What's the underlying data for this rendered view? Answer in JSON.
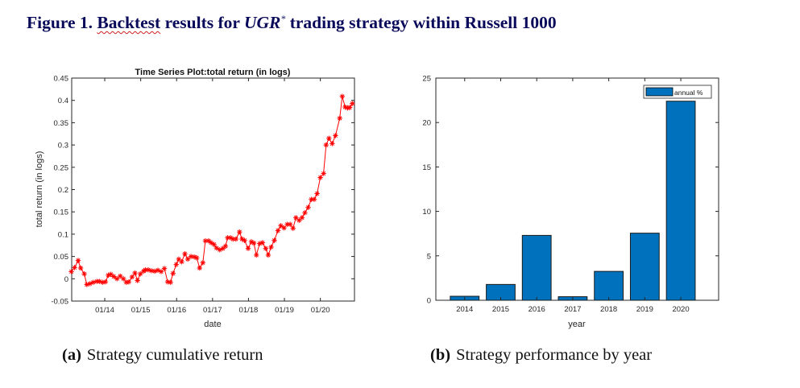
{
  "figure": {
    "prefix": "Figure 1.",
    "word_backtest": "Backtest",
    "text_mid": "results for",
    "ugr": "UGR",
    "ugr_sup": "*",
    "text_end": "trading strategy within Russell 1000"
  },
  "captions": {
    "a_label": "(a)",
    "a_text": "Strategy cumulative return",
    "b_label": "(b)",
    "b_text": "Strategy performance by year"
  },
  "chart_data": [
    {
      "type": "line",
      "title": "Time Series Plot:total return (in logs)",
      "xlabel": "date",
      "ylabel": "total return (in logs)",
      "xlim": [
        2013.08,
        2020.95
      ],
      "ylim": [
        -0.05,
        0.45
      ],
      "yticks": [
        -0.05,
        0,
        0.05,
        0.1,
        0.15,
        0.2,
        0.25,
        0.3,
        0.35,
        0.4,
        0.45
      ],
      "ytick_labels": [
        "-0.05",
        "0",
        "0.05",
        "0.1",
        "0.15",
        "0.2",
        "0.25",
        "0.3",
        "0.35",
        "0.4",
        "0.45"
      ],
      "xticks": [
        2014,
        2015,
        2016,
        2017,
        2018,
        2019,
        2020
      ],
      "xtick_labels": [
        "01/14",
        "01/15",
        "01/16",
        "01/17",
        "01/18",
        "01/19",
        "01/20"
      ],
      "grid": false,
      "color": "#ff0000",
      "marker": "*",
      "x": [
        2013.07,
        2013.16,
        2013.26,
        2013.33,
        2013.43,
        2013.5,
        2013.59,
        2013.68,
        2013.78,
        2013.85,
        2013.94,
        2014.02,
        2014.1,
        2014.17,
        2014.25,
        2014.34,
        2014.43,
        2014.52,
        2014.6,
        2014.67,
        2014.76,
        2014.84,
        2014.91,
        2014.99,
        2015.08,
        2015.13,
        2015.21,
        2015.3,
        2015.39,
        2015.48,
        2015.57,
        2015.66,
        2015.75,
        2015.83,
        2015.9,
        2015.99,
        2016.06,
        2016.14,
        2016.23,
        2016.31,
        2016.4,
        2016.49,
        2016.56,
        2016.64,
        2016.73,
        2016.8,
        2016.89,
        2016.96,
        2017.04,
        2017.11,
        2017.2,
        2017.29,
        2017.36,
        2017.42,
        2017.5,
        2017.57,
        2017.65,
        2017.75,
        2017.82,
        2017.89,
        2017.99,
        2018.08,
        2018.15,
        2018.22,
        2018.31,
        2018.39,
        2018.48,
        2018.55,
        2018.63,
        2018.72,
        2018.82,
        2018.9,
        2018.99,
        2019.08,
        2019.16,
        2019.24,
        2019.32,
        2019.41,
        2019.49,
        2019.57,
        2019.66,
        2019.75,
        2019.83,
        2019.91,
        2020.0,
        2020.09,
        2020.16,
        2020.24,
        2020.33,
        2020.42,
        2020.54,
        2020.61,
        2020.69,
        2020.76,
        2020.82,
        2020.89
      ],
      "y": [
        0.016,
        0.025,
        0.041,
        0.024,
        0.011,
        -0.013,
        -0.011,
        -0.008,
        -0.006,
        -0.006,
        -0.008,
        -0.007,
        0.008,
        0.01,
        0.005,
        0.0,
        0.006,
        0.0,
        -0.008,
        -0.007,
        0.004,
        0.013,
        -0.004,
        0.011,
        0.017,
        0.02,
        0.02,
        0.018,
        0.017,
        0.019,
        0.016,
        0.023,
        -0.007,
        -0.008,
        0.012,
        0.032,
        0.044,
        0.038,
        0.056,
        0.044,
        0.05,
        0.049,
        0.047,
        0.024,
        0.036,
        0.085,
        0.085,
        0.081,
        0.077,
        0.069,
        0.065,
        0.068,
        0.073,
        0.092,
        0.092,
        0.089,
        0.089,
        0.105,
        0.089,
        0.086,
        0.068,
        0.083,
        0.08,
        0.053,
        0.079,
        0.081,
        0.068,
        0.053,
        0.071,
        0.086,
        0.108,
        0.119,
        0.114,
        0.122,
        0.122,
        0.113,
        0.137,
        0.131,
        0.137,
        0.148,
        0.16,
        0.178,
        0.178,
        0.191,
        0.227,
        0.236,
        0.3,
        0.315,
        0.303,
        0.321,
        0.36,
        0.409,
        0.385,
        0.383,
        0.384,
        0.393
      ]
    },
    {
      "type": "bar",
      "title": "",
      "xlabel": "year",
      "ylabel": "",
      "categories": [
        "2014",
        "2015",
        "2016",
        "2017",
        "2018",
        "2019",
        "2020"
      ],
      "values": [
        0.45,
        1.78,
        7.3,
        0.4,
        3.25,
        7.55,
        22.4
      ],
      "ylim": [
        0,
        25
      ],
      "yticks": [
        0,
        5,
        10,
        15,
        20,
        25
      ],
      "ytick_labels": [
        "0",
        "5",
        "10",
        "15",
        "20",
        "25"
      ],
      "legend": [
        "annual %"
      ],
      "legend_position": "top-right",
      "grid": false,
      "color": "#0072bd"
    }
  ]
}
